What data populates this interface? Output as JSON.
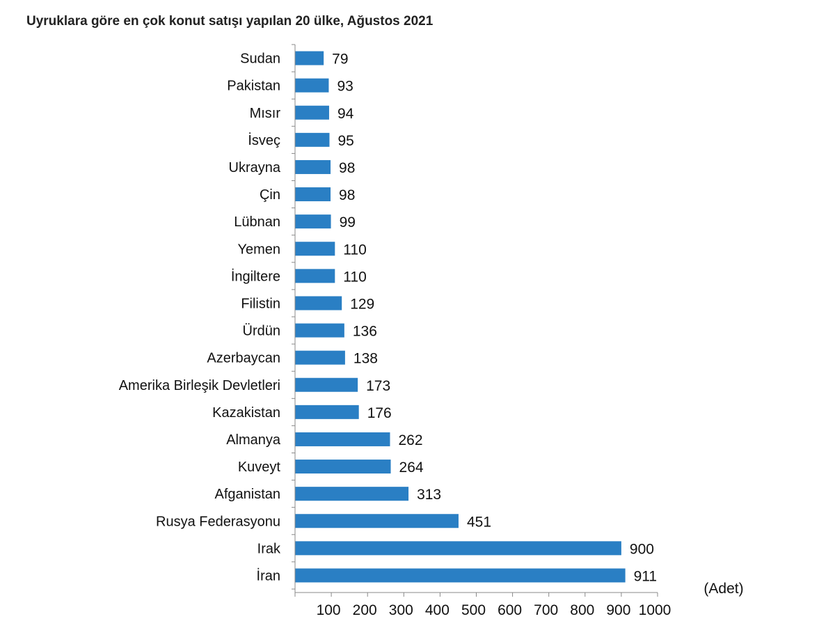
{
  "chart_data": {
    "type": "bar",
    "orientation": "horizontal",
    "title": "Uyruklara göre en çok konut satışı yapılan 20 ülke, Ağustos 2021",
    "unit_label": "(Adet)",
    "categories": [
      "Sudan",
      "Pakistan",
      "Mısır",
      "İsveç",
      "Ukrayna",
      "Çin",
      "Lübnan",
      "Yemen",
      "İngiltere",
      "Filistin",
      "Ürdün",
      "Azerbaycan",
      "Amerika Birleşik Devletleri",
      "Kazakistan",
      "Almanya",
      "Kuveyt",
      "Afganistan",
      "Rusya Federasyonu",
      "Irak",
      "İran"
    ],
    "values": [
      79,
      93,
      94,
      95,
      98,
      98,
      99,
      110,
      110,
      129,
      136,
      138,
      173,
      176,
      262,
      264,
      313,
      451,
      900,
      911
    ],
    "xlim": [
      0,
      1000
    ],
    "xticks": [
      100,
      200,
      300,
      400,
      500,
      600,
      700,
      800,
      900,
      1000
    ],
    "grid": false,
    "data_labels": true,
    "bar_color": "#2a7fc4"
  }
}
